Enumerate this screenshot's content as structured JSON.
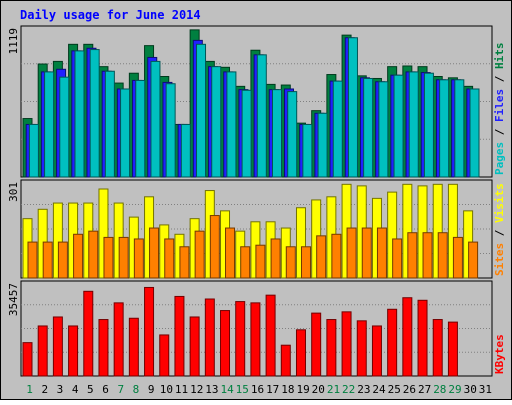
{
  "chart_data": {
    "type": "bar",
    "title": "Daily usage for June 2014",
    "days": [
      "1",
      "2",
      "3",
      "4",
      "5",
      "6",
      "7",
      "8",
      "9",
      "10",
      "11",
      "12",
      "13",
      "14",
      "15",
      "16",
      "17",
      "18",
      "19",
      "20",
      "21",
      "22",
      "23",
      "24",
      "25",
      "26",
      "27",
      "28",
      "29",
      "30",
      "31"
    ],
    "weekend_days": [
      "1",
      "7",
      "8",
      "14",
      "15",
      "21",
      "22",
      "28",
      "29"
    ],
    "panels": [
      {
        "id": "hits",
        "max_label": "1119",
        "ymax": 1119,
        "series_labels": [
          "Pages",
          "Files",
          "Hits"
        ],
        "series_colors": [
          "#00c0c0",
          "#2020ff",
          "#008040"
        ],
        "series": [
          {
            "name": "Hits",
            "values": [
              445,
              860,
              880,
              1010,
              1010,
              840,
              715,
              790,
              1000,
              765,
              400,
              1120,
              880,
              835,
              690,
              965,
              705,
              700,
              410,
              505,
              780,
              1080,
              770,
              750,
              840,
              845,
              840,
              765,
              755,
              690,
              0
            ]
          },
          {
            "name": "Files",
            "values": [
              400,
              800,
              820,
              960,
              980,
              805,
              670,
              735,
              910,
              720,
              400,
              1040,
              840,
              800,
              665,
              930,
              665,
              670,
              400,
              485,
              730,
              1060,
              755,
              725,
              775,
              800,
              795,
              740,
              740,
              670,
              0
            ]
          },
          {
            "name": "Pages",
            "values": [
              400,
              800,
              760,
              960,
              970,
              805,
              670,
              735,
              880,
              710,
              400,
              1010,
              840,
              800,
              660,
              930,
              665,
              650,
              400,
              485,
              730,
              1060,
              750,
              725,
              775,
              800,
              790,
              740,
              740,
              670,
              0
            ]
          }
        ]
      },
      {
        "id": "visits",
        "max_label": "301",
        "ymax": 301,
        "series_labels": [
          "Sites",
          "Visits"
        ],
        "series_colors": [
          "#ff8000",
          "#ffff00"
        ],
        "series": [
          {
            "name": "Visits",
            "values": [
              190,
              220,
              240,
              240,
              240,
              285,
              240,
              195,
              260,
              170,
              140,
              190,
              280,
              215,
              150,
              180,
              180,
              160,
              225,
              250,
              260,
              300,
              295,
              255,
              275,
              300,
              295,
              300,
              300,
              215,
              0
            ]
          },
          {
            "name": "Sites",
            "values": [
              115,
              115,
              115,
              140,
              150,
              130,
              130,
              125,
              160,
              125,
              100,
              150,
              200,
              160,
              100,
              105,
              125,
              100,
              100,
              135,
              140,
              160,
              160,
              160,
              125,
              145,
              145,
              145,
              130,
              115,
              0
            ]
          }
        ]
      },
      {
        "id": "kbytes",
        "max_label": "35457",
        "ymax": 35457,
        "series_labels": [
          "KBytes"
        ],
        "series_colors": [
          "#ff0000"
        ],
        "series": [
          {
            "name": "KBytes",
            "values": [
              13000,
              19500,
              23000,
              19500,
              33000,
              22000,
              28500,
              22500,
              34500,
              16000,
              31000,
              23000,
              30000,
              25500,
              29000,
              28500,
              31500,
              12000,
              18000,
              24500,
              22000,
              25000,
              21500,
              19500,
              26000,
              30500,
              29500,
              22000,
              21000,
              0,
              0
            ]
          }
        ]
      }
    ]
  }
}
